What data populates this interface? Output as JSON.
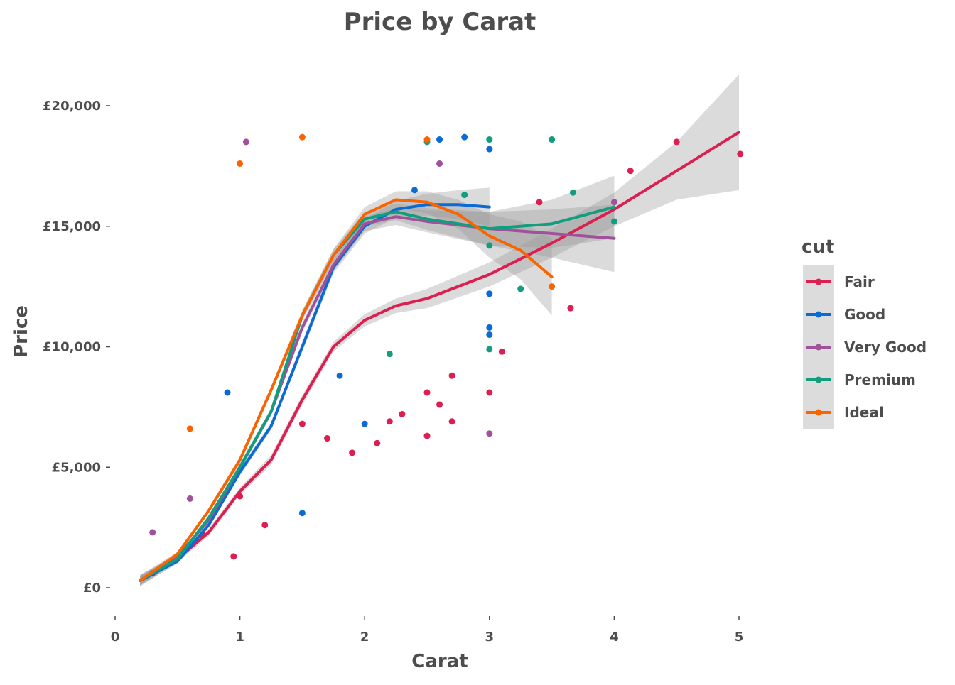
{
  "chart_data": {
    "type": "scatter",
    "title": "Price by Carat",
    "xlabel": "Carat",
    "ylabel": "Price",
    "xlim": [
      0,
      5
    ],
    "ylim": [
      0,
      20000
    ],
    "x_ticks": [
      0,
      1,
      2,
      3,
      4,
      5
    ],
    "x_tick_labels": [
      "0",
      "1",
      "2",
      "3",
      "4",
      "5"
    ],
    "y_ticks": [
      0,
      5000,
      10000,
      15000,
      20000
    ],
    "y_tick_labels": [
      "£0",
      "£5,000",
      "£10,000",
      "£15,000",
      "£20,000"
    ],
    "grid": false,
    "legend": {
      "title": "cut",
      "placement": "right",
      "entries": [
        "Fair",
        "Good",
        "Very Good",
        "Premium",
        "Ideal"
      ]
    },
    "series": [
      {
        "name": "Fair",
        "color": "#dc1e50",
        "smooth": {
          "x": [
            0.2,
            0.5,
            0.75,
            1.0,
            1.25,
            1.5,
            1.75,
            2.0,
            2.25,
            2.5,
            3.0,
            3.5,
            4.0,
            4.5,
            5.0
          ],
          "y": [
            300,
            1200,
            2300,
            4000,
            5300,
            7800,
            10000,
            11100,
            11700,
            12000,
            13000,
            14300,
            15700,
            17300,
            18900
          ],
          "ci_halfwidth": [
            250,
            150,
            150,
            150,
            200,
            200,
            200,
            250,
            300,
            400,
            500,
            600,
            700,
            1200,
            2400
          ]
        },
        "points": [
          [
            0.3,
            600
          ],
          [
            0.7,
            2200
          ],
          [
            0.95,
            1300
          ],
          [
            1.0,
            3800
          ],
          [
            1.2,
            2600
          ],
          [
            1.5,
            6800
          ],
          [
            1.7,
            6200
          ],
          [
            1.9,
            5600
          ],
          [
            2.1,
            6000
          ],
          [
            2.2,
            6900
          ],
          [
            2.3,
            7200
          ],
          [
            2.5,
            6300
          ],
          [
            2.5,
            8100
          ],
          [
            2.6,
            7600
          ],
          [
            2.7,
            6900
          ],
          [
            2.7,
            8800
          ],
          [
            3.0,
            8100
          ],
          [
            3.1,
            9800
          ],
          [
            3.4,
            16000
          ],
          [
            3.65,
            11600
          ],
          [
            4.13,
            17300
          ],
          [
            4.5,
            18500
          ],
          [
            5.01,
            18000
          ]
        ]
      },
      {
        "name": "Good",
        "color": "#0b6bd3",
        "smooth": {
          "x": [
            0.2,
            0.5,
            0.75,
            1.0,
            1.25,
            1.5,
            1.75,
            2.0,
            2.25,
            2.5,
            2.75,
            3.0
          ],
          "y": [
            300,
            1100,
            2600,
            4800,
            6700,
            10000,
            13300,
            15000,
            15700,
            15900,
            15900,
            15800
          ],
          "ci_halfwidth": [
            200,
            100,
            100,
            150,
            150,
            200,
            250,
            300,
            350,
            450,
            600,
            800
          ]
        },
        "points": [
          [
            0.9,
            8100
          ],
          [
            1.5,
            3100
          ],
          [
            1.8,
            8800
          ],
          [
            2.0,
            6800
          ],
          [
            2.4,
            16500
          ],
          [
            2.6,
            18600
          ],
          [
            2.8,
            18700
          ],
          [
            3.0,
            18200
          ],
          [
            3.0,
            12200
          ],
          [
            3.0,
            10800
          ],
          [
            3.0,
            10500
          ]
        ]
      },
      {
        "name": "Very Good",
        "color": "#a0519b",
        "smooth": {
          "x": [
            0.2,
            0.5,
            0.75,
            1.0,
            1.25,
            1.5,
            1.75,
            2.0,
            2.25,
            2.5,
            3.0,
            3.5,
            4.0
          ],
          "y": [
            300,
            1300,
            2800,
            5000,
            7300,
            10800,
            13400,
            15100,
            15400,
            15200,
            14900,
            14700,
            14500
          ],
          "ci_halfwidth": [
            200,
            100,
            100,
            150,
            150,
            200,
            250,
            300,
            350,
            450,
            700,
            1000,
            1400
          ]
        },
        "points": [
          [
            0.3,
            2300
          ],
          [
            0.6,
            3700
          ],
          [
            1.05,
            18500
          ],
          [
            2.6,
            17600
          ],
          [
            3.0,
            6400
          ],
          [
            4.0,
            16000
          ]
        ]
      },
      {
        "name": "Premium",
        "color": "#119d7e",
        "smooth": {
          "x": [
            0.2,
            0.5,
            0.75,
            1.0,
            1.25,
            1.5,
            1.75,
            2.0,
            2.25,
            2.5,
            3.0,
            3.5,
            4.0
          ],
          "y": [
            300,
            1200,
            2900,
            5000,
            7300,
            11300,
            13800,
            15300,
            15600,
            15300,
            14900,
            15100,
            15800
          ],
          "ci_halfwidth": [
            200,
            100,
            100,
            150,
            150,
            200,
            250,
            300,
            350,
            450,
            700,
            1000,
            1300
          ]
        },
        "points": [
          [
            2.2,
            9700
          ],
          [
            2.5,
            18500
          ],
          [
            2.8,
            16300
          ],
          [
            3.0,
            18600
          ],
          [
            3.0,
            14200
          ],
          [
            3.0,
            9900
          ],
          [
            3.25,
            12400
          ],
          [
            3.5,
            18600
          ],
          [
            3.67,
            16400
          ],
          [
            4.0,
            15200
          ]
        ]
      },
      {
        "name": "Ideal",
        "color": "#fa6400",
        "smooth": {
          "x": [
            0.2,
            0.5,
            0.75,
            1.0,
            1.25,
            1.5,
            1.75,
            2.0,
            2.25,
            2.5,
            2.75,
            3.0,
            3.25,
            3.5
          ],
          "y": [
            300,
            1400,
            3200,
            5300,
            8200,
            11300,
            13800,
            15500,
            16100,
            16000,
            15500,
            14600,
            14000,
            12900
          ],
          "ci_halfwidth": [
            200,
            100,
            100,
            150,
            150,
            200,
            250,
            300,
            350,
            450,
            600,
            900,
            1200,
            1600
          ]
        },
        "points": [
          [
            0.6,
            6600
          ],
          [
            1.0,
            17600
          ],
          [
            1.5,
            18700
          ],
          [
            2.5,
            18600
          ],
          [
            3.5,
            12500
          ]
        ]
      }
    ]
  }
}
